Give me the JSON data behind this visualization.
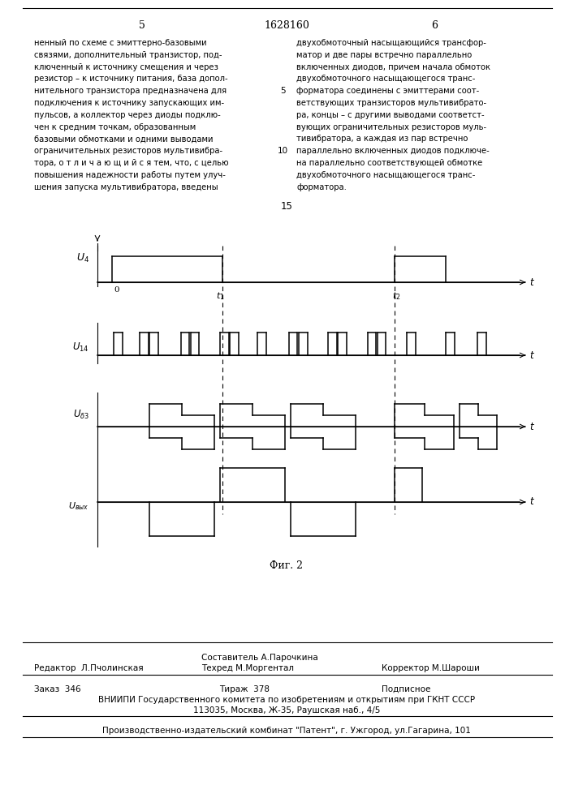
{
  "page_num_left": "5",
  "page_num_center": "1628160",
  "page_num_right": "6",
  "text_left": "ненный по схеме с эмиттерно-базовыми\nсвязями, дополнительный транзистор, под-\nключенный к источнику смещения и через\nрезистор – к источнику питания, база допол-\nнительного транзистора предназначена для\nподключения к источнику запускающих им-\nпульсов, а коллектор через диоды подклю-\nчен к средним точкам, образованным\nбазовыми обмотками и одними выводами\nограничительных резисторов мультивибра-\nтора, о т л и ч а ю щ и й с я тем, что, с целью\nповышения надежности работы путем улуч-\nшения запуска мультивибратора, введены",
  "text_right": "двухобмоточный насыщающийся трансфор-\nматор и две пары встречно параллельно\nвключенных диодов, причем начала обмоток\nдвухобмоточного насыщающегося транс-\nформатора соединены с эмиттерами соот-\nветствующих транзисторов мультивибрато-\nра, концы – с другими выводами соответст-\nвующих ограничительных резисторов муль-\nтивибратора, а каждая из пар встречно\nпараллельно включенных диодов подключе-\nна параллельно соответствующей обмотке\nдвухобмоточного насыщающегося транс-\nформатора.",
  "center_num": "15",
  "fig_caption": "Фиг. 2",
  "footer_sestavitel": "Составитель А.Парочкина",
  "footer_redaktor": "Редактор  Л.Пчолинская",
  "footer_tehred": "Техред М.Моргентал",
  "footer_korrektor": "Корректор М.Шароши",
  "footer_order": "Заказ  346",
  "footer_tirazh": "Тираж  378",
  "footer_podp": "Подписное",
  "footer_vniip1": "ВНИИПИ Государственного комитета по изобретениям и открытиям при ГКНТ СССР",
  "footer_vniip2": "113035, Москва, Ж-35, Раушская наб., 4/5",
  "footer_plant": "Производственно-издательский комбинат \"Патент\", г. Ужгород, ул.Гагарина, 101",
  "bg_color": "#ffffff",
  "text_color": "#000000"
}
